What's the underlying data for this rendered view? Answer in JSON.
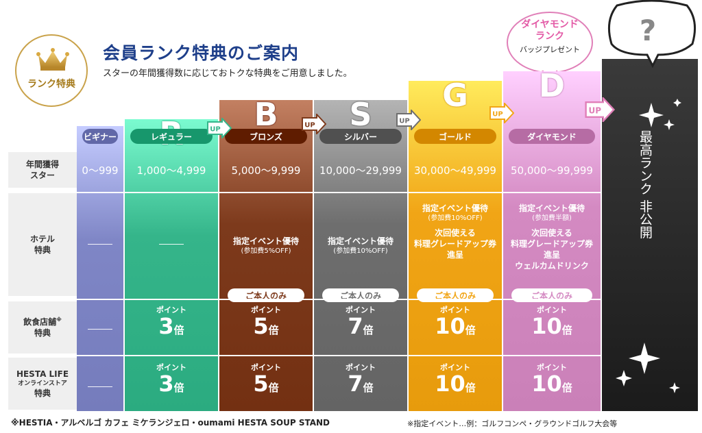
{
  "header": {
    "badge_label": "ランク特典",
    "title": "会員ランク特典のご案内",
    "subtitle": "スターの年間獲得数に応じておトクな特典をご用意しました。"
  },
  "row_headers": {
    "stars": "年間獲得\nスター",
    "hotel": "ホテル\n特典",
    "restaurant": "飲食店舗",
    "restaurant_mark": "※",
    "restaurant_suffix": "特典",
    "online_line1": "HESTA LIFE",
    "online_line2": "オンラインストア",
    "online_line3": "特典"
  },
  "ranks": [
    {
      "key": "beginner",
      "letter": "",
      "pill": "ビギナー",
      "stars": "0〜999",
      "color": "#7f86c6"
    },
    {
      "key": "regular",
      "letter": "R",
      "pill": "レギュラー",
      "stars": "1,000〜4,999",
      "color": "#35b58a"
    },
    {
      "key": "bronze",
      "letter": "B",
      "pill": "ブロンズ",
      "stars": "5,000〜9,999",
      "color": "#7d3a1c"
    },
    {
      "key": "silver",
      "letter": "S",
      "pill": "シルバー",
      "stars": "10,000〜29,999",
      "color": "#6e6e6e"
    },
    {
      "key": "gold",
      "letter": "G",
      "pill": "ゴールド",
      "stars": "30,000〜49,999",
      "color": "#f1a516"
    },
    {
      "key": "diamond",
      "letter": "D",
      "pill": "ダイヤモンド",
      "stars": "50,000〜99,999",
      "color": "#d48ac2"
    }
  ],
  "up_label": "UP",
  "hotel": {
    "bronze": {
      "main": "指定イベント優待",
      "sub": "(参加費5%OFF)"
    },
    "silver": {
      "main": "指定イベント優待",
      "sub": "(参加費10%OFF)"
    },
    "gold": {
      "main": "指定イベント優待",
      "sub": "(参加費10%OFF)",
      "extra1": "次回使える",
      "extra2": "料理グレードアップ券",
      "extra3": "進呈"
    },
    "diamond": {
      "main": "指定イベント優待",
      "sub": "(参加費半額)",
      "extra1": "次回使える",
      "extra2": "料理グレードアップ券",
      "extra3": "進呈",
      "extra4": "ウェルカムドリンク"
    }
  },
  "only_you": "ご本人のみ",
  "points_label": "ポイント",
  "points_unit": "倍",
  "restaurant_points": {
    "regular": "3",
    "bronze": "5",
    "silver": "7",
    "gold": "10",
    "diamond": "10"
  },
  "online_points": {
    "regular": "3",
    "bronze": "5",
    "silver": "7",
    "gold": "10",
    "diamond": "10"
  },
  "diamond_bubble": {
    "line1": "ダイヤモンド",
    "line2": "ランク",
    "line3": "バッジプレゼント"
  },
  "top_rank": {
    "question": "?",
    "text": "最高ランク 非公開"
  },
  "footer": {
    "note1": "※HESTIA・アルベルゴ カフェ ミケランジェロ・oumami HESTA SOUP STAND",
    "note2": "※指定イベント…例：ゴルフコンペ・グラウンドゴルフ大会等"
  }
}
